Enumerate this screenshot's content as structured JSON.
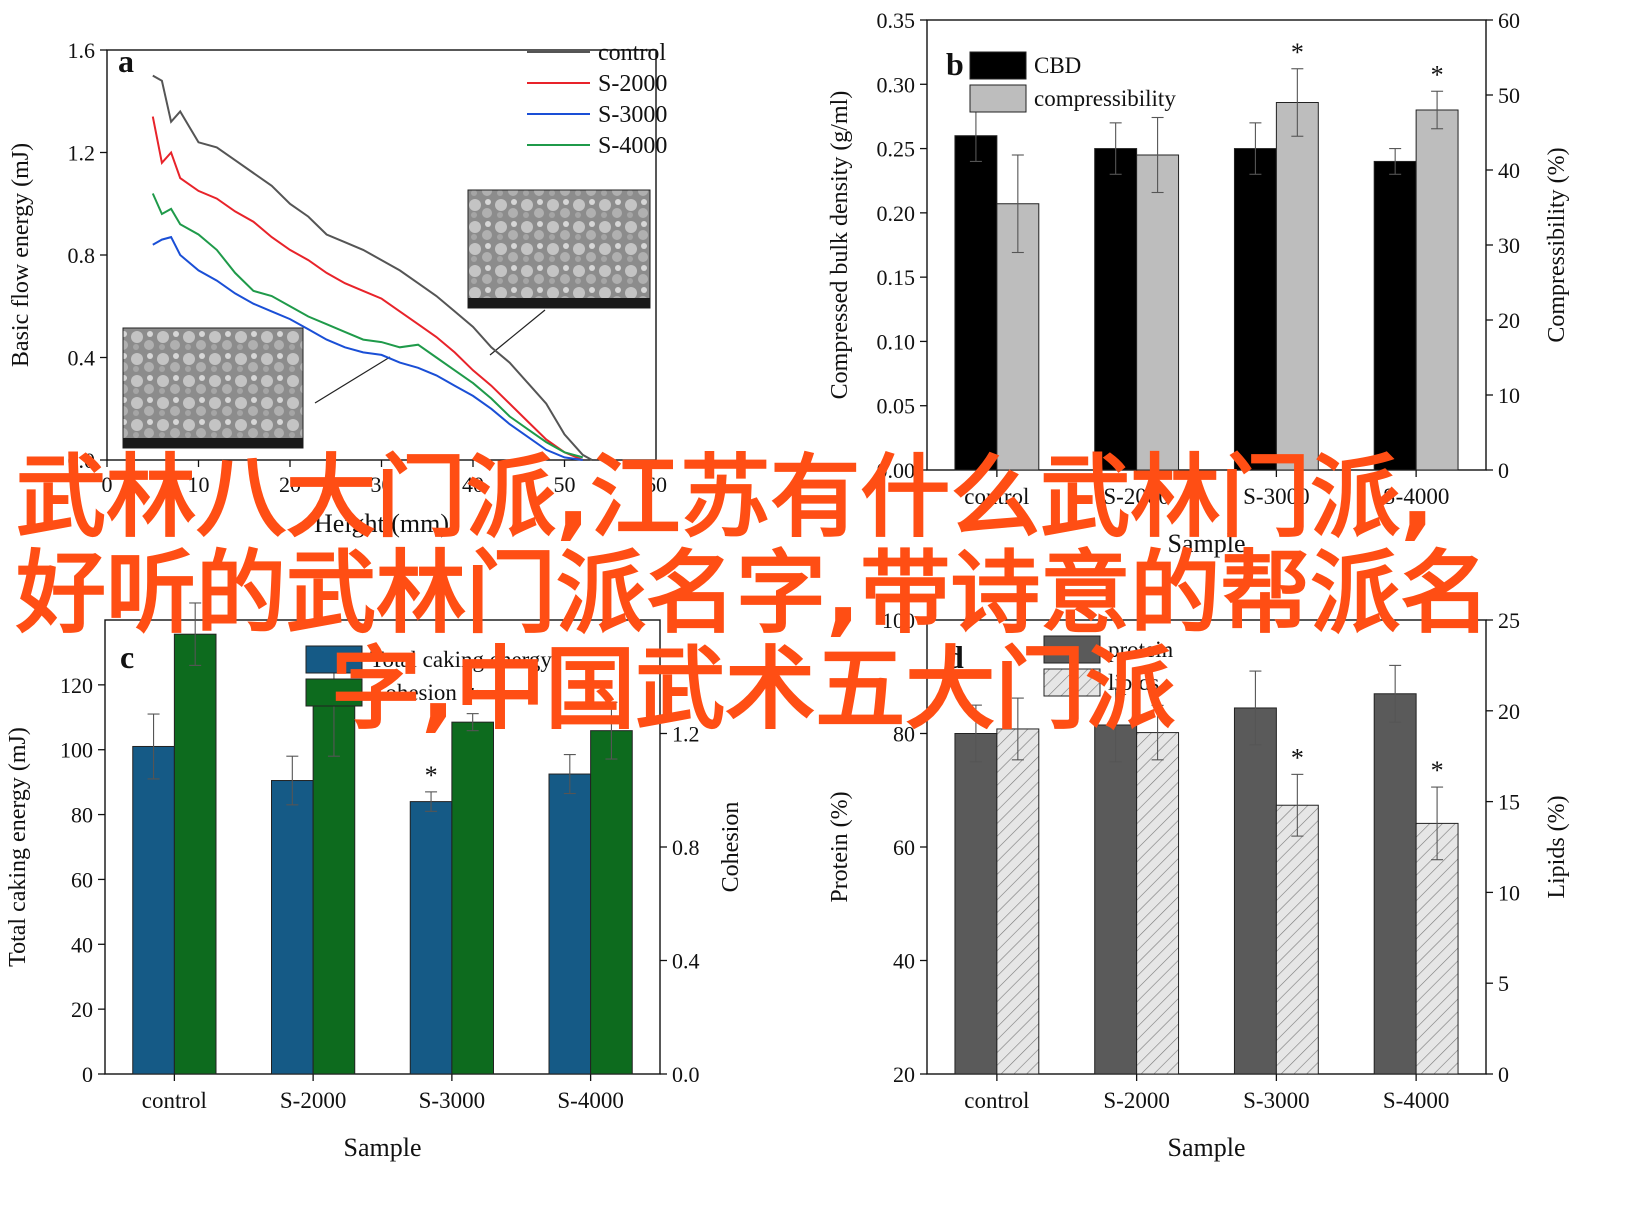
{
  "overlay": {
    "line1": "武林八大门派,江苏有什么武林门派,",
    "line2": "好听的武林门派名字,带诗意的帮派名",
    "line3": "字,中国武术五大门派"
  },
  "colors": {
    "control": "#555555",
    "S2000": "#e8232a",
    "S3000": "#1a4fd6",
    "S4000": "#1f9a4a",
    "cbd": "#000000",
    "compressibility": "#bdbdbd",
    "caking": "#155a86",
    "cohesion": "#0d6b1e",
    "protein": "#5a5a5a",
    "lipids": "#dcdcdc",
    "overlay": "#ff4e14"
  },
  "chart_data": [
    {
      "panel": "a",
      "type": "line",
      "xlabel": "Height (mm)",
      "ylabel": "Basic flow energy (mJ)",
      "xlim": [
        0,
        60
      ],
      "ylim": [
        0,
        1.6
      ],
      "xticks": [
        "0",
        "10",
        "20",
        "30",
        "40",
        "50",
        "60"
      ],
      "yticks": [
        "0.0",
        "0.4",
        "0.8",
        "1.2",
        "1.6"
      ],
      "legend": "top-right",
      "series": [
        {
          "name": "control",
          "color": "#555555",
          "x": [
            5,
            6,
            7,
            8,
            10,
            12,
            14,
            16,
            18,
            20,
            22,
            24,
            26,
            28,
            30,
            32,
            34,
            36,
            38,
            40,
            42,
            44,
            46,
            48,
            50,
            52,
            53
          ],
          "y": [
            1.5,
            1.48,
            1.32,
            1.36,
            1.24,
            1.22,
            1.17,
            1.12,
            1.07,
            1.0,
            0.95,
            0.88,
            0.85,
            0.82,
            0.78,
            0.74,
            0.69,
            0.64,
            0.58,
            0.52,
            0.44,
            0.38,
            0.3,
            0.22,
            0.1,
            0.02,
            0.0
          ]
        },
        {
          "name": "S-2000",
          "color": "#e8232a",
          "x": [
            5,
            6,
            7,
            8,
            10,
            12,
            14,
            16,
            18,
            20,
            22,
            24,
            26,
            28,
            30,
            32,
            34,
            36,
            38,
            40,
            42,
            44,
            46,
            48,
            50,
            52
          ],
          "y": [
            1.34,
            1.16,
            1.2,
            1.1,
            1.05,
            1.02,
            0.97,
            0.93,
            0.87,
            0.82,
            0.78,
            0.73,
            0.69,
            0.66,
            0.63,
            0.58,
            0.53,
            0.48,
            0.42,
            0.35,
            0.29,
            0.22,
            0.15,
            0.08,
            0.03,
            0.0
          ]
        },
        {
          "name": "S-3000",
          "color": "#1a4fd6",
          "x": [
            5,
            6,
            7,
            8,
            10,
            12,
            14,
            16,
            18,
            20,
            22,
            24,
            26,
            28,
            30,
            32,
            34,
            36,
            38,
            40,
            42,
            44,
            46,
            48,
            50,
            52
          ],
          "y": [
            0.84,
            0.86,
            0.87,
            0.8,
            0.74,
            0.7,
            0.65,
            0.61,
            0.58,
            0.55,
            0.51,
            0.47,
            0.44,
            0.42,
            0.41,
            0.38,
            0.36,
            0.33,
            0.29,
            0.25,
            0.2,
            0.14,
            0.09,
            0.04,
            0.01,
            0.0
          ]
        },
        {
          "name": "S-4000",
          "color": "#1f9a4a",
          "x": [
            5,
            6,
            7,
            8,
            10,
            12,
            14,
            16,
            18,
            20,
            22,
            24,
            26,
            28,
            30,
            32,
            34,
            36,
            38,
            40,
            42,
            44,
            46,
            48,
            50,
            52
          ],
          "y": [
            1.04,
            0.96,
            0.98,
            0.92,
            0.88,
            0.82,
            0.73,
            0.66,
            0.64,
            0.6,
            0.56,
            0.53,
            0.5,
            0.47,
            0.46,
            0.44,
            0.45,
            0.4,
            0.35,
            0.3,
            0.24,
            0.17,
            0.12,
            0.07,
            0.03,
            0.01
          ]
        }
      ]
    },
    {
      "panel": "b",
      "type": "bar",
      "xlabel": "Sample",
      "ylabel": "Compressed bulk density (g/ml)",
      "ylabel_right": "Compressibility (%)",
      "categories": [
        "control",
        "S-2000",
        "S-3000",
        "S-4000"
      ],
      "ylim": [
        0,
        0.35
      ],
      "ylim_right": [
        0,
        60
      ],
      "yticks": [
        "0.00",
        "0.05",
        "0.10",
        "0.15",
        "0.20",
        "0.25",
        "0.30",
        "0.35"
      ],
      "yticks_right": [
        "0",
        "10",
        "20",
        "30",
        "40",
        "50",
        "60"
      ],
      "legend": "top-left",
      "series": [
        {
          "name": "CBD",
          "axis": "left",
          "color": "#000000",
          "values": [
            0.26,
            0.25,
            0.25,
            0.24
          ],
          "errors": [
            0.02,
            0.02,
            0.02,
            0.01
          ],
          "sig": [
            "",
            "",
            "",
            ""
          ]
        },
        {
          "name": "compressibility",
          "axis": "right",
          "color": "#bdbdbd",
          "values": [
            35.5,
            42,
            49,
            48
          ],
          "errors": [
            6.5,
            5,
            4.5,
            2.5
          ],
          "sig": [
            "",
            "",
            "*",
            "*"
          ]
        }
      ]
    },
    {
      "panel": "c",
      "type": "bar",
      "xlabel": "Sample",
      "ylabel": "Total caking energy (mJ)",
      "ylabel_right": "Cohesion",
      "categories": [
        "control",
        "S-2000",
        "S-3000",
        "S-4000"
      ],
      "ylim": [
        0,
        140
      ],
      "ylim_right": [
        0,
        1.6
      ],
      "yticks": [
        "0",
        "20",
        "40",
        "60",
        "80",
        "100",
        "120"
      ],
      "yticks_right": [
        "0.0",
        "0.4",
        "0.8",
        "1.2"
      ],
      "legend": "top-center",
      "series": [
        {
          "name": "Total caking energy",
          "axis": "left",
          "color": "#155a86",
          "values": [
            101,
            90.5,
            84,
            92.5
          ],
          "errors": [
            10,
            7.5,
            3,
            6
          ],
          "sig": [
            "",
            "",
            "*",
            ""
          ]
        },
        {
          "name": "Cohesion",
          "axis": "right",
          "color": "#0d6b1e",
          "values": [
            1.55,
            1.3,
            1.24,
            1.21
          ],
          "errors": [
            0.11,
            0.18,
            0.03,
            0.1
          ],
          "sig": [
            "",
            "",
            "*",
            ""
          ]
        }
      ]
    },
    {
      "panel": "d",
      "type": "bar",
      "xlabel": "Sample",
      "ylabel": "Protein (%)",
      "ylabel_right": "Lipids (%)",
      "categories": [
        "control",
        "S-2000",
        "S-3000",
        "S-4000"
      ],
      "ylim": [
        20,
        100
      ],
      "ylim_right": [
        0,
        25
      ],
      "yticks": [
        "20",
        "40",
        "60",
        "80",
        "100"
      ],
      "yticks_right": [
        "0",
        "5",
        "10",
        "15",
        "20",
        "25"
      ],
      "legend": "top-left",
      "series": [
        {
          "name": "protein",
          "axis": "left",
          "color": "#5a5a5a",
          "values": [
            80,
            81.5,
            84.5,
            87
          ],
          "errors": [
            5,
            6.5,
            6.5,
            5
          ],
          "sig": [
            "",
            "",
            "",
            ""
          ]
        },
        {
          "name": "lipids",
          "axis": "right",
          "color": "#dcdcdc",
          "hatch": true,
          "values": [
            19,
            18.8,
            14.8,
            13.8
          ],
          "errors": [
            1.7,
            1.5,
            1.7,
            2
          ],
          "sig": [
            "",
            "",
            "*",
            "*"
          ]
        }
      ]
    }
  ]
}
